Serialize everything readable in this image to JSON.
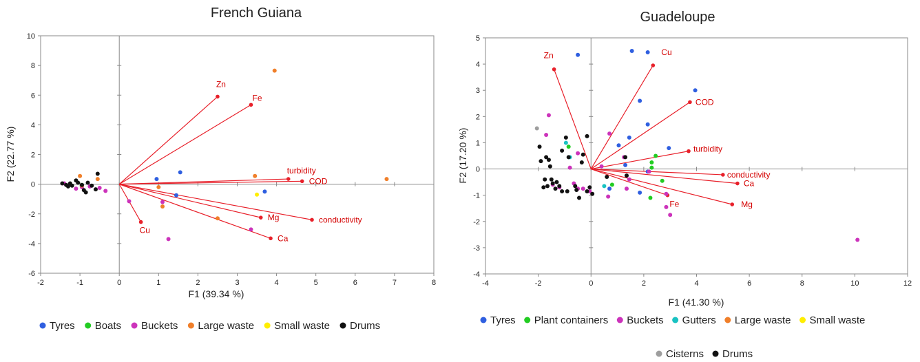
{
  "chart_data": [
    {
      "type": "scatter",
      "title": "French Guiana",
      "xlabel": "F1 (39.34 %)",
      "ylabel": "F2 (22.77 %)",
      "xlim": [
        -2,
        8
      ],
      "ylim": [
        -6,
        10
      ],
      "xticks": [
        "-2",
        "-1",
        "0",
        "1",
        "2",
        "3",
        "4",
        "5",
        "6",
        "7",
        "8"
      ],
      "yticks": [
        "-6",
        "-4",
        "-2",
        "0",
        "2",
        "4",
        "6",
        "8",
        "10"
      ],
      "grid": false,
      "legend_position": "bottom",
      "series": [
        {
          "name": "Tyres",
          "color": "#2f5fe0",
          "points": [
            [
              0.95,
              0.35
            ],
            [
              1.55,
              0.8
            ],
            [
              1.45,
              -0.75
            ],
            [
              3.7,
              -0.5
            ]
          ]
        },
        {
          "name": "Boats",
          "color": "#22cc22",
          "points": [
            [
              -0.95,
              -0.05
            ]
          ]
        },
        {
          "name": "Buckets",
          "color": "#cc33bb",
          "points": [
            [
              -1.4,
              0.05
            ],
            [
              -1.1,
              -0.3
            ],
            [
              -0.95,
              -0.2
            ],
            [
              -0.75,
              -0.15
            ],
            [
              -0.5,
              -0.25
            ],
            [
              -0.35,
              -0.45
            ],
            [
              0.25,
              -1.15
            ],
            [
              1.1,
              -1.2
            ],
            [
              1.25,
              -3.7
            ],
            [
              3.35,
              -3.05
            ]
          ]
        },
        {
          "name": "Large waste",
          "color": "#f07f2a",
          "points": [
            [
              -1.0,
              0.55
            ],
            [
              -0.55,
              0.35
            ],
            [
              -0.95,
              -0.1
            ],
            [
              1.0,
              -0.2
            ],
            [
              1.1,
              -1.5
            ],
            [
              2.5,
              -2.3
            ],
            [
              3.45,
              0.55
            ],
            [
              3.95,
              7.65
            ],
            [
              6.8,
              0.35
            ]
          ]
        },
        {
          "name": "Small waste",
          "color": "#ffee00",
          "points": [
            [
              3.5,
              -0.7
            ]
          ]
        },
        {
          "name": "Drums",
          "color": "#111111",
          "points": [
            [
              -1.45,
              0.05
            ],
            [
              -1.35,
              -0.05
            ],
            [
              -1.25,
              0.05
            ],
            [
              -1.2,
              -0.1
            ],
            [
              -1.1,
              0.25
            ],
            [
              -1.05,
              0.1
            ],
            [
              -0.95,
              -0.05
            ],
            [
              -0.9,
              -0.4
            ],
            [
              -0.85,
              -0.55
            ],
            [
              -0.8,
              0.1
            ],
            [
              -0.7,
              -0.1
            ],
            [
              -0.6,
              -0.35
            ],
            [
              -0.55,
              0.7
            ],
            [
              -1.3,
              -0.15
            ]
          ]
        }
      ],
      "vectors": [
        {
          "label": "Zn",
          "x": 2.5,
          "y": 5.9
        },
        {
          "label": "Fe",
          "x": 3.35,
          "y": 5.35
        },
        {
          "label": "turbidity",
          "x": 4.3,
          "y": 0.35
        },
        {
          "label": "COD",
          "x": 4.65,
          "y": 0.2
        },
        {
          "label": "conductivity",
          "x": 4.9,
          "y": -2.4
        },
        {
          "label": "Mg",
          "x": 3.6,
          "y": -2.25
        },
        {
          "label": "Ca",
          "x": 3.85,
          "y": -3.65
        },
        {
          "label": "Cu",
          "x": 0.55,
          "y": -2.55
        }
      ]
    },
    {
      "type": "scatter",
      "title": "Guadeloupe",
      "xlabel": "F1 (41.30 %)",
      "ylabel": "F2 (17.20 %)",
      "xlim": [
        -4,
        12
      ],
      "ylim": [
        -4,
        5
      ],
      "xticks": [
        "-4",
        "-2",
        "0",
        "2",
        "4",
        "6",
        "8",
        "10",
        "12"
      ],
      "yticks": [
        "-4",
        "-3",
        "-2",
        "-1",
        "0",
        "1",
        "2",
        "3",
        "4",
        "5"
      ],
      "grid": false,
      "legend_position": "bottom",
      "series": [
        {
          "name": "Tyres",
          "color": "#2f5fe0",
          "points": [
            [
              -0.5,
              4.35
            ],
            [
              1.55,
              4.5
            ],
            [
              2.15,
              4.45
            ],
            [
              3.95,
              3.0
            ],
            [
              1.85,
              2.6
            ],
            [
              2.15,
              1.7
            ],
            [
              1.45,
              1.2
            ],
            [
              1.05,
              0.9
            ],
            [
              2.95,
              0.8
            ],
            [
              1.3,
              0.15
            ],
            [
              2.15,
              -0.1
            ],
            [
              0.7,
              -0.75
            ],
            [
              1.85,
              -0.9
            ]
          ]
        },
        {
          "name": "Plant containers",
          "color": "#22cc22",
          "points": [
            [
              -0.85,
              0.85
            ],
            [
              2.45,
              0.5
            ],
            [
              2.3,
              0.25
            ],
            [
              2.3,
              0.05
            ],
            [
              2.7,
              -0.45
            ],
            [
              0.8,
              -0.6
            ],
            [
              2.25,
              -1.1
            ]
          ]
        },
        {
          "name": "Buckets",
          "color": "#cc33bb",
          "points": [
            [
              -1.6,
              2.05
            ],
            [
              -1.7,
              1.3
            ],
            [
              -0.5,
              0.6
            ],
            [
              -0.8,
              0.05
            ],
            [
              0.7,
              1.35
            ],
            [
              0.4,
              0.1
            ],
            [
              1.25,
              0.45
            ],
            [
              2.2,
              -0.1
            ],
            [
              -1.45,
              -0.6
            ],
            [
              -0.65,
              -0.55
            ],
            [
              -0.5,
              -0.75
            ],
            [
              -0.05,
              -0.85
            ],
            [
              1.45,
              -0.4
            ],
            [
              0.65,
              -1.05
            ],
            [
              1.35,
              -0.75
            ],
            [
              2.85,
              -0.95
            ],
            [
              2.85,
              -1.45
            ],
            [
              3.0,
              -1.75
            ],
            [
              10.1,
              -2.7
            ],
            [
              -1.2,
              -0.7
            ],
            [
              -0.3,
              -0.75
            ]
          ]
        },
        {
          "name": "Gutters",
          "color": "#19c2c2",
          "points": [
            [
              -0.95,
              1.0
            ],
            [
              -0.8,
              0.45
            ],
            [
              0.5,
              -0.65
            ]
          ]
        },
        {
          "name": "Large waste",
          "color": "#f07f2a",
          "points": []
        },
        {
          "name": "Small waste",
          "color": "#ffee00",
          "points": []
        },
        {
          "name": "Cisterns",
          "color": "#9e9e9e",
          "points": [
            [
              -2.05,
              1.55
            ]
          ]
        },
        {
          "name": "Drums",
          "color": "#111111",
          "points": [
            [
              -1.95,
              0.85
            ],
            [
              -1.9,
              0.3
            ],
            [
              -1.7,
              0.45
            ],
            [
              -1.6,
              0.35
            ],
            [
              -1.55,
              0.1
            ],
            [
              -1.75,
              -0.4
            ],
            [
              -1.65,
              -0.65
            ],
            [
              -1.5,
              -0.4
            ],
            [
              -1.45,
              -0.55
            ],
            [
              -1.35,
              -0.75
            ],
            [
              -1.3,
              -0.5
            ],
            [
              -1.2,
              -0.65
            ],
            [
              -1.1,
              0.7
            ],
            [
              -0.95,
              1.2
            ],
            [
              -0.85,
              0.45
            ],
            [
              -0.6,
              -0.65
            ],
            [
              -0.55,
              -0.8
            ],
            [
              -0.45,
              -1.1
            ],
            [
              -0.35,
              0.25
            ],
            [
              -0.3,
              0.55
            ],
            [
              -0.15,
              1.25
            ],
            [
              -0.15,
              -0.85
            ],
            [
              -0.05,
              -0.7
            ],
            [
              0.05,
              -0.95
            ],
            [
              0.6,
              -0.3
            ],
            [
              1.3,
              0.45
            ],
            [
              1.35,
              -0.25
            ],
            [
              -1.8,
              -0.7
            ],
            [
              -1.1,
              -0.85
            ],
            [
              -0.9,
              -0.85
            ]
          ]
        }
      ],
      "vectors": [
        {
          "label": "Zn",
          "x": -1.4,
          "y": 3.8
        },
        {
          "label": "Cu",
          "x": 2.35,
          "y": 3.95
        },
        {
          "label": "COD",
          "x": 3.75,
          "y": 2.55
        },
        {
          "label": "turbidity",
          "x": 3.7,
          "y": 0.68
        },
        {
          "label": "conductivity",
          "x": 5.0,
          "y": -0.22
        },
        {
          "label": "Ca",
          "x": 5.55,
          "y": -0.55
        },
        {
          "label": "Mg",
          "x": 5.35,
          "y": -1.35
        },
        {
          "label": "Fe",
          "x": 2.9,
          "y": -1.0
        }
      ]
    }
  ]
}
